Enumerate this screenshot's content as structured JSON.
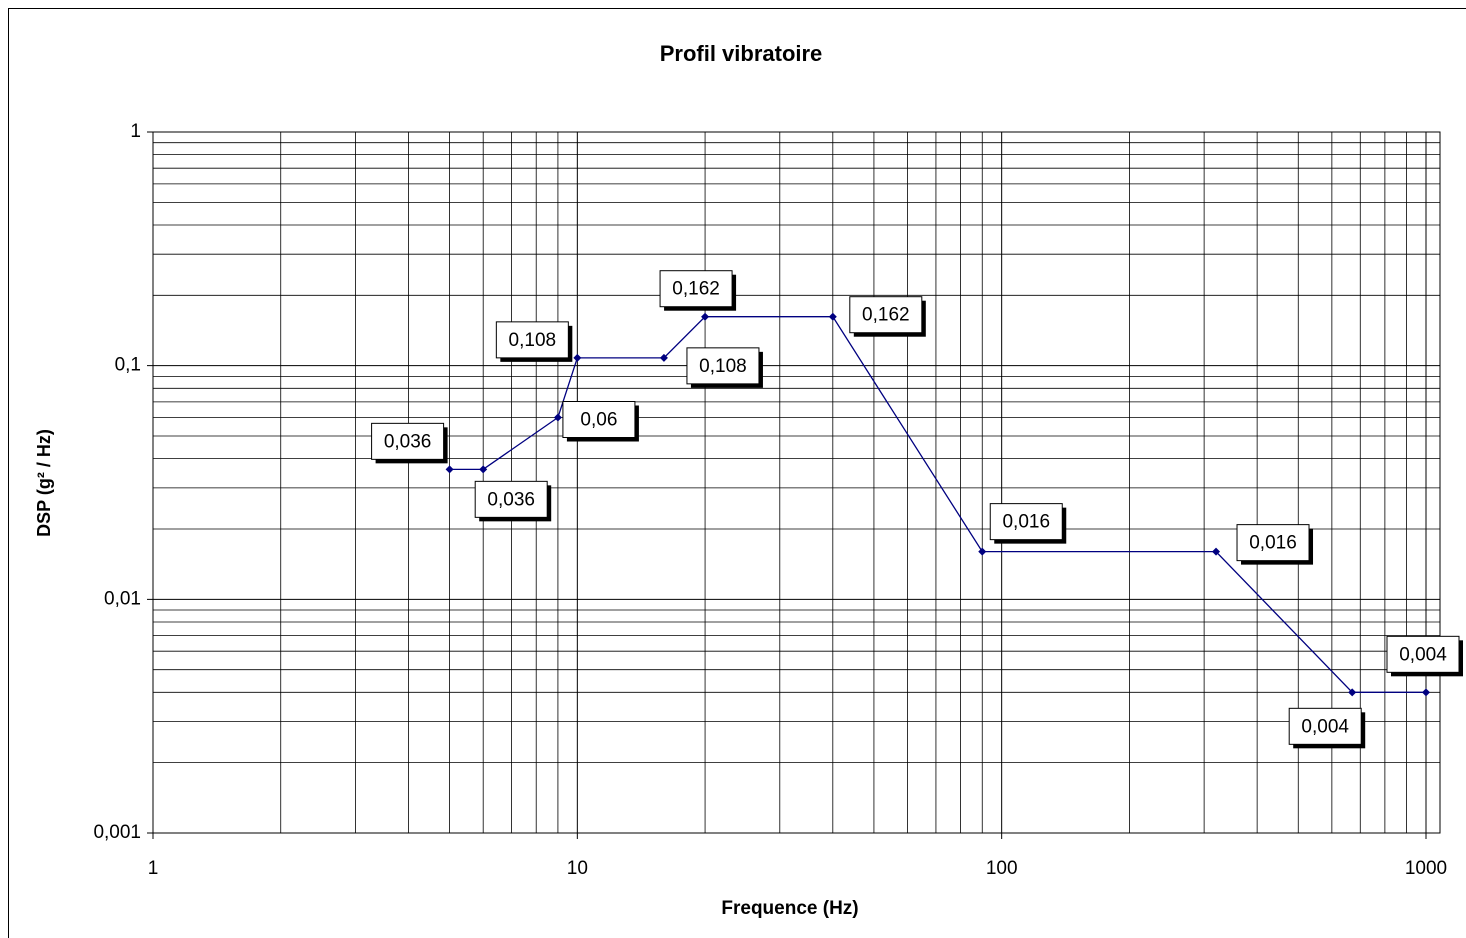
{
  "chart_data": {
    "type": "line",
    "title": "Profil vibratoire",
    "x_label": "Frequence (Hz)",
    "y_label": "DSP (g² / Hz)",
    "x": [
      5,
      6,
      9,
      10,
      16,
      20,
      40,
      90,
      320,
      670,
      1000
    ],
    "series": [
      {
        "name": "DSP",
        "color": "#000080",
        "values": [
          0.036,
          0.036,
          0.06,
          0.108,
          0.108,
          0.162,
          0.162,
          0.016,
          0.016,
          0.004,
          0.004
        ],
        "value_labels": [
          "0,036",
          "0,036",
          "0,06",
          "0,108",
          "0,108",
          "0,162",
          "0,162",
          "0,016",
          "0,016",
          "0,004",
          "0,004"
        ]
      }
    ],
    "xlim": [
      1,
      1000
    ],
    "ylim": [
      0.001,
      1
    ],
    "xticks": [
      1,
      10,
      100,
      1000
    ],
    "yticks": [
      {
        "value": 0.001,
        "label": "0,001"
      },
      {
        "value": 0.01,
        "label": "0,01"
      },
      {
        "value": 0.1,
        "label": "0,1"
      },
      1
    ],
    "xscale": "log",
    "yscale": "log",
    "grid": true
  }
}
